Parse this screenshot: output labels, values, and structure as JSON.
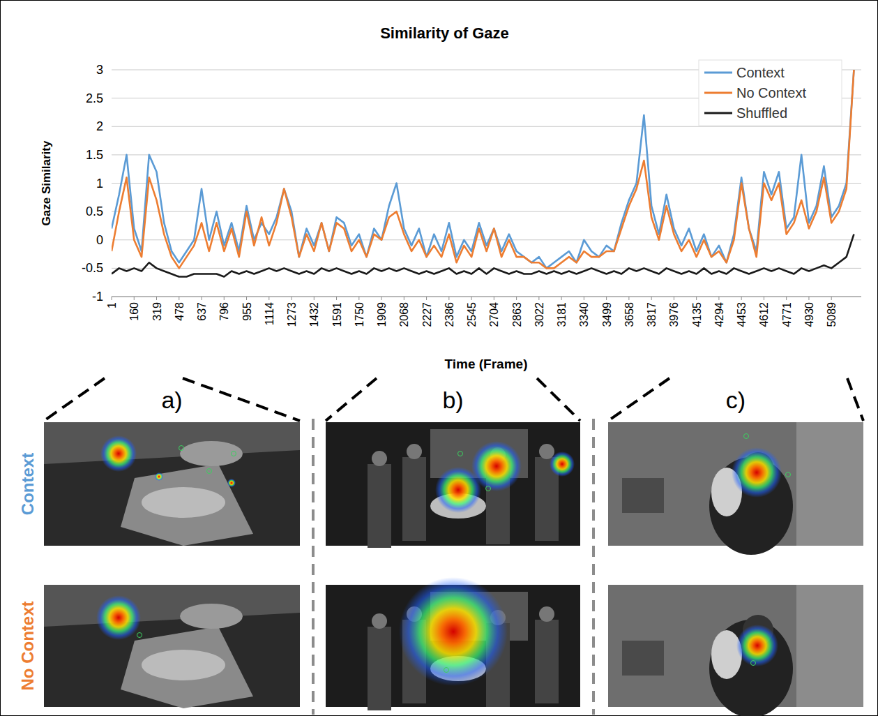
{
  "chart_data": {
    "type": "line",
    "title": "Similarity of Gaze",
    "x_label": "Time (Frame)",
    "y_label": "Gaze Similarity",
    "x": [
      1,
      54,
      107,
      160,
      213,
      266,
      319,
      372,
      425,
      478,
      531,
      584,
      637,
      690,
      743,
      796,
      849,
      902,
      955,
      1008,
      1061,
      1114,
      1167,
      1220,
      1273,
      1326,
      1379,
      1432,
      1485,
      1538,
      1591,
      1644,
      1697,
      1750,
      1803,
      1856,
      1909,
      1962,
      2015,
      2068,
      2121,
      2174,
      2227,
      2280,
      2333,
      2386,
      2439,
      2492,
      2545,
      2598,
      2651,
      2704,
      2757,
      2810,
      2863,
      2916,
      2969,
      3022,
      3075,
      3128,
      3181,
      3234,
      3287,
      3340,
      3393,
      3446,
      3499,
      3552,
      3605,
      3658,
      3711,
      3764,
      3817,
      3870,
      3923,
      3976,
      4029,
      4082,
      4135,
      4188,
      4241,
      4294,
      4347,
      4400,
      4453,
      4506,
      4559,
      4612,
      4665,
      4718,
      4771,
      4824,
      4877,
      4930,
      4983,
      5036,
      5089,
      5142,
      5195,
      5248
    ],
    "series": [
      {
        "name": "Context",
        "color": "#5b9bd5",
        "values": [
          0.2,
          0.8,
          1.5,
          0.2,
          -0.2,
          1.5,
          1.2,
          0.3,
          -0.2,
          -0.4,
          -0.2,
          0.0,
          0.9,
          0.0,
          0.5,
          -0.1,
          0.3,
          -0.2,
          0.6,
          0.0,
          0.3,
          0.1,
          0.4,
          0.9,
          0.5,
          -0.3,
          0.2,
          -0.1,
          0.3,
          -0.2,
          0.4,
          0.3,
          -0.1,
          0.1,
          -0.3,
          0.2,
          0.0,
          0.6,
          1.0,
          0.2,
          -0.1,
          0.2,
          -0.3,
          0.1,
          -0.2,
          0.3,
          -0.3,
          0.0,
          -0.2,
          0.3,
          -0.1,
          0.2,
          -0.2,
          0.1,
          -0.2,
          -0.3,
          -0.4,
          -0.3,
          -0.5,
          -0.4,
          -0.3,
          -0.2,
          -0.4,
          0.0,
          -0.2,
          -0.3,
          -0.1,
          -0.2,
          0.3,
          0.7,
          1.0,
          2.2,
          0.6,
          0.1,
          0.8,
          0.2,
          -0.1,
          0.2,
          -0.2,
          0.1,
          -0.3,
          -0.1,
          -0.4,
          0.1,
          1.1,
          0.2,
          -0.2,
          1.2,
          0.8,
          1.2,
          0.2,
          0.4,
          1.5,
          0.3,
          0.6,
          1.3,
          0.4,
          0.6,
          1.0,
          3.0
        ]
      },
      {
        "name": "No Context",
        "color": "#ed7d31",
        "values": [
          -0.2,
          0.5,
          1.1,
          0.0,
          -0.3,
          1.1,
          0.7,
          0.1,
          -0.3,
          -0.5,
          -0.3,
          -0.1,
          0.3,
          -0.2,
          0.3,
          -0.2,
          0.2,
          -0.3,
          0.5,
          -0.1,
          0.4,
          -0.1,
          0.3,
          0.9,
          0.4,
          -0.3,
          0.1,
          -0.2,
          0.3,
          -0.2,
          0.3,
          0.2,
          -0.2,
          0.0,
          -0.3,
          0.1,
          0.0,
          0.4,
          0.5,
          0.1,
          -0.2,
          0.0,
          -0.3,
          -0.1,
          -0.3,
          0.1,
          -0.4,
          -0.1,
          -0.3,
          0.2,
          -0.2,
          0.2,
          -0.3,
          0.0,
          -0.3,
          -0.3,
          -0.4,
          -0.4,
          -0.5,
          -0.5,
          -0.4,
          -0.3,
          -0.4,
          -0.2,
          -0.3,
          -0.3,
          -0.2,
          -0.2,
          0.2,
          0.6,
          0.9,
          1.4,
          0.4,
          0.0,
          0.6,
          0.1,
          -0.2,
          0.0,
          -0.3,
          0.0,
          -0.3,
          -0.2,
          -0.4,
          0.0,
          1.0,
          0.2,
          -0.3,
          1.0,
          0.7,
          1.0,
          0.1,
          0.3,
          0.7,
          0.2,
          0.5,
          1.1,
          0.3,
          0.5,
          0.9,
          3.0
        ]
      },
      {
        "name": "Shuffled",
        "color": "#1a1a1a",
        "values": [
          -0.6,
          -0.5,
          -0.55,
          -0.5,
          -0.55,
          -0.4,
          -0.5,
          -0.55,
          -0.6,
          -0.65,
          -0.65,
          -0.6,
          -0.6,
          -0.6,
          -0.6,
          -0.65,
          -0.55,
          -0.6,
          -0.55,
          -0.6,
          -0.55,
          -0.5,
          -0.55,
          -0.5,
          -0.55,
          -0.6,
          -0.55,
          -0.6,
          -0.5,
          -0.55,
          -0.5,
          -0.55,
          -0.6,
          -0.55,
          -0.6,
          -0.5,
          -0.55,
          -0.5,
          -0.55,
          -0.5,
          -0.55,
          -0.6,
          -0.55,
          -0.6,
          -0.55,
          -0.5,
          -0.6,
          -0.55,
          -0.6,
          -0.5,
          -0.6,
          -0.5,
          -0.55,
          -0.6,
          -0.55,
          -0.6,
          -0.6,
          -0.55,
          -0.6,
          -0.55,
          -0.6,
          -0.55,
          -0.6,
          -0.55,
          -0.5,
          -0.55,
          -0.6,
          -0.55,
          -0.6,
          -0.5,
          -0.55,
          -0.5,
          -0.55,
          -0.6,
          -0.5,
          -0.55,
          -0.6,
          -0.55,
          -0.6,
          -0.5,
          -0.6,
          -0.55,
          -0.6,
          -0.5,
          -0.55,
          -0.6,
          -0.55,
          -0.5,
          -0.55,
          -0.5,
          -0.55,
          -0.6,
          -0.5,
          -0.55,
          -0.5,
          -0.45,
          -0.5,
          -0.4,
          -0.3,
          0.1
        ]
      }
    ],
    "xlim": [
      1,
      5300
    ],
    "xticks": [
      1,
      160,
      319,
      478,
      637,
      796,
      955,
      1114,
      1273,
      1432,
      1591,
      1750,
      1909,
      2068,
      2227,
      2386,
      2545,
      2704,
      2863,
      3022,
      3181,
      3340,
      3499,
      3658,
      3817,
      3976,
      4135,
      4294,
      4453,
      4612,
      4771,
      4930,
      5089
    ],
    "ylim": [
      -1,
      3
    ],
    "yticks": [
      -1,
      -0.5,
      0,
      0.5,
      1,
      1.5,
      2,
      2.5,
      3
    ],
    "grid": true,
    "legend": "top-right"
  },
  "panels": {
    "letters": [
      "a)",
      "b)",
      "c)"
    ],
    "rows": [
      "Context",
      "No Context"
    ]
  }
}
